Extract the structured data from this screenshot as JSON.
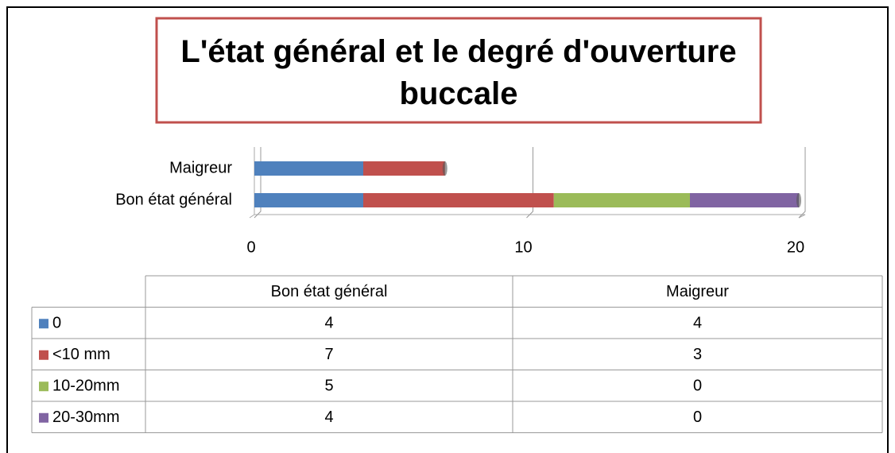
{
  "chart_data": {
    "type": "bar",
    "orientation": "horizontal",
    "stacked": true,
    "title": "L'état général et le degré d'ouverture buccale",
    "categories": [
      "Bon état général",
      "Maigreur"
    ],
    "series": [
      {
        "name": "0",
        "color": "#4f81bd",
        "values": [
          4,
          4
        ]
      },
      {
        "name": "<10 mm",
        "color": "#c0504d",
        "values": [
          7,
          3
        ]
      },
      {
        "name": "10-20mm",
        "color": "#9bbb59",
        "values": [
          5,
          0
        ]
      },
      {
        "name": "20-30mm",
        "color": "#8064a2",
        "values": [
          4,
          0
        ]
      }
    ],
    "xlim": [
      0,
      20
    ],
    "xticks": [
      0,
      10,
      20
    ],
    "grid": true,
    "data_table": true
  }
}
